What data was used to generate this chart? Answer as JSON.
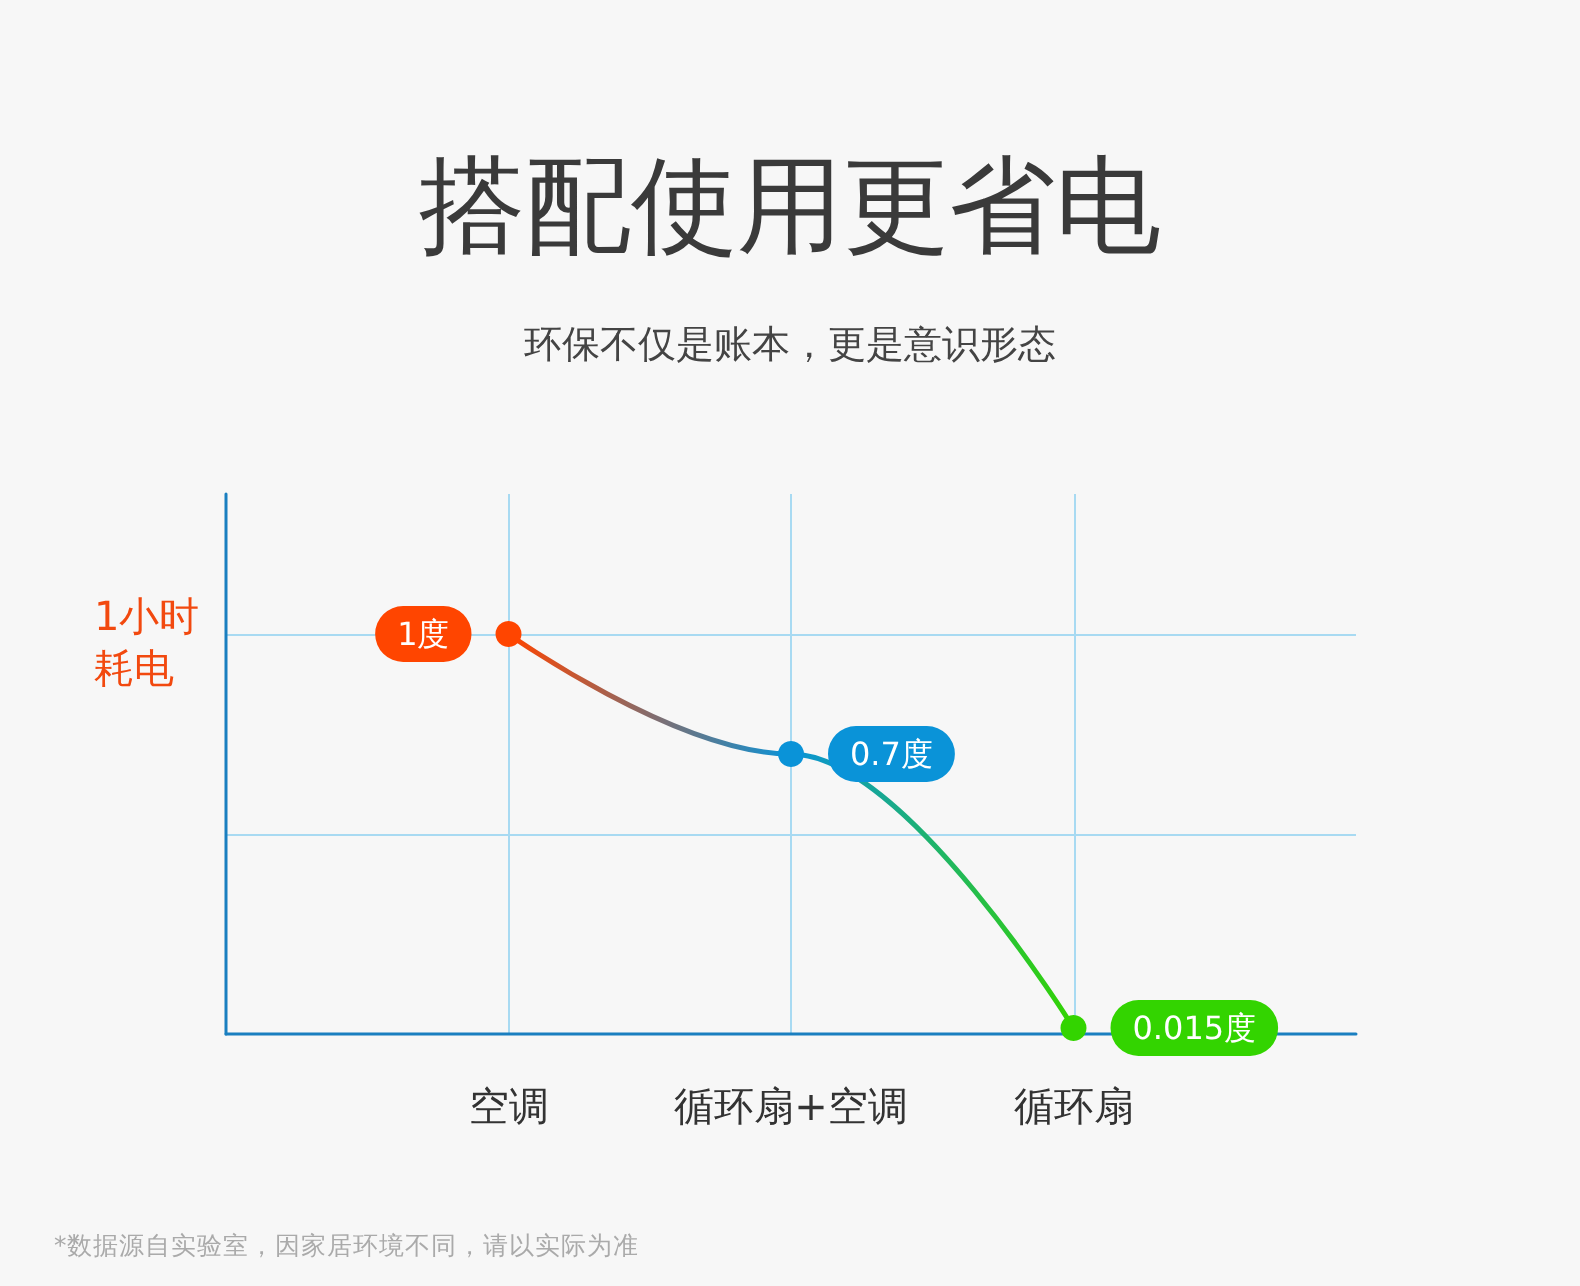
{
  "chart_data": {
    "type": "line",
    "title": "搭配使用更省电",
    "subtitle": "环保不仅是账本，更是意识形态",
    "ylabel": "1小时耗电",
    "annotations": [
      "*数据源自实验室，因家居环境不同，请以实际为准"
    ],
    "categories": [
      "空调",
      "循环扇+空调",
      "循环扇"
    ],
    "series": [
      {
        "colors": [
          "#ff4500",
          "#0a93d8",
          "#33d400"
        ],
        "values": [
          1,
          0.7,
          0.015
        ],
        "value_labels": [
          "1度",
          "0.7度",
          "0.015度"
        ]
      }
    ],
    "ylim": [
      0,
      1.35
    ],
    "yticks": [
      {
        "value": 0.5,
        "label": null
      },
      {
        "value": 1,
        "label": null
      }
    ],
    "grid": true,
    "marker": "circle",
    "tick_labels": "x"
  }
}
